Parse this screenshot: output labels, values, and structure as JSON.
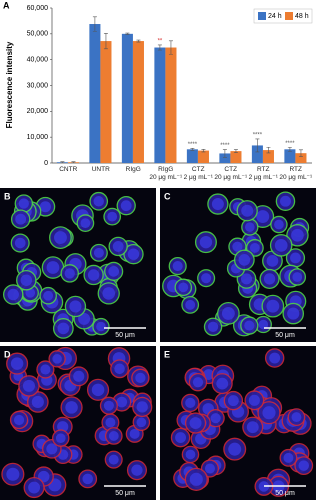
{
  "chart_data": {
    "type": "bar",
    "panel": "A",
    "ylabel": "Fluorescence intensity",
    "categories": [
      "CNTR",
      "UNTR",
      "RIgG",
      "RIgG\n20 μg mL⁻¹",
      "CTZ\n2 μg mL⁻¹",
      "CTZ\n20 μg mL⁻¹",
      "RTZ\n2 μg mL⁻¹",
      "RTZ\n20 μg mL⁻¹"
    ],
    "series": [
      {
        "name": "24 h",
        "color": "#3b73c4",
        "values": [
          300,
          53800,
          50000,
          44700,
          5300,
          3700,
          6800,
          5300
        ],
        "errors": [
          200,
          2800,
          300,
          1000,
          400,
          1500,
          2500,
          800
        ]
      },
      {
        "name": "48 h",
        "color": "#ed7d31",
        "values": [
          300,
          47200,
          47200,
          44700,
          4800,
          4600,
          5000,
          3800
        ],
        "errors": [
          200,
          3000,
          400,
          2600,
          500,
          600,
          1100,
          1300
        ]
      }
    ],
    "ylim": [
      0,
      60000
    ],
    "yticks": [
      0,
      {
        "value": 10000,
        "label": "10,000"
      },
      {
        "value": 20000,
        "label": "20,000"
      },
      {
        "value": 30000,
        "label": "30,000"
      },
      {
        "value": 40000,
        "label": "40,000"
      },
      {
        "value": 50000,
        "label": "50,000"
      },
      {
        "value": 60000,
        "label": "60,000"
      }
    ],
    "legend": "upper right",
    "annotations": [
      {
        "text": "**",
        "category": 3,
        "series": 0,
        "color": "#d62728"
      },
      {
        "text": "****",
        "category": 4,
        "series": 0,
        "color": "#555555"
      },
      {
        "text": "****",
        "category": 5,
        "series": 0,
        "color": "#555555"
      },
      {
        "text": "****",
        "category": 6,
        "series": 0,
        "color": "#555555"
      },
      {
        "text": "****",
        "category": 7,
        "series": 0,
        "color": "#555555"
      }
    ]
  },
  "panels": [
    {
      "letter": "B",
      "scale": "50 μm",
      "stain": "green"
    },
    {
      "letter": "C",
      "scale": "50 μm",
      "stain": "green"
    },
    {
      "letter": "D",
      "scale": "50 μm",
      "stain": "red"
    },
    {
      "letter": "E",
      "scale": "50 μm",
      "stain": "red"
    }
  ]
}
